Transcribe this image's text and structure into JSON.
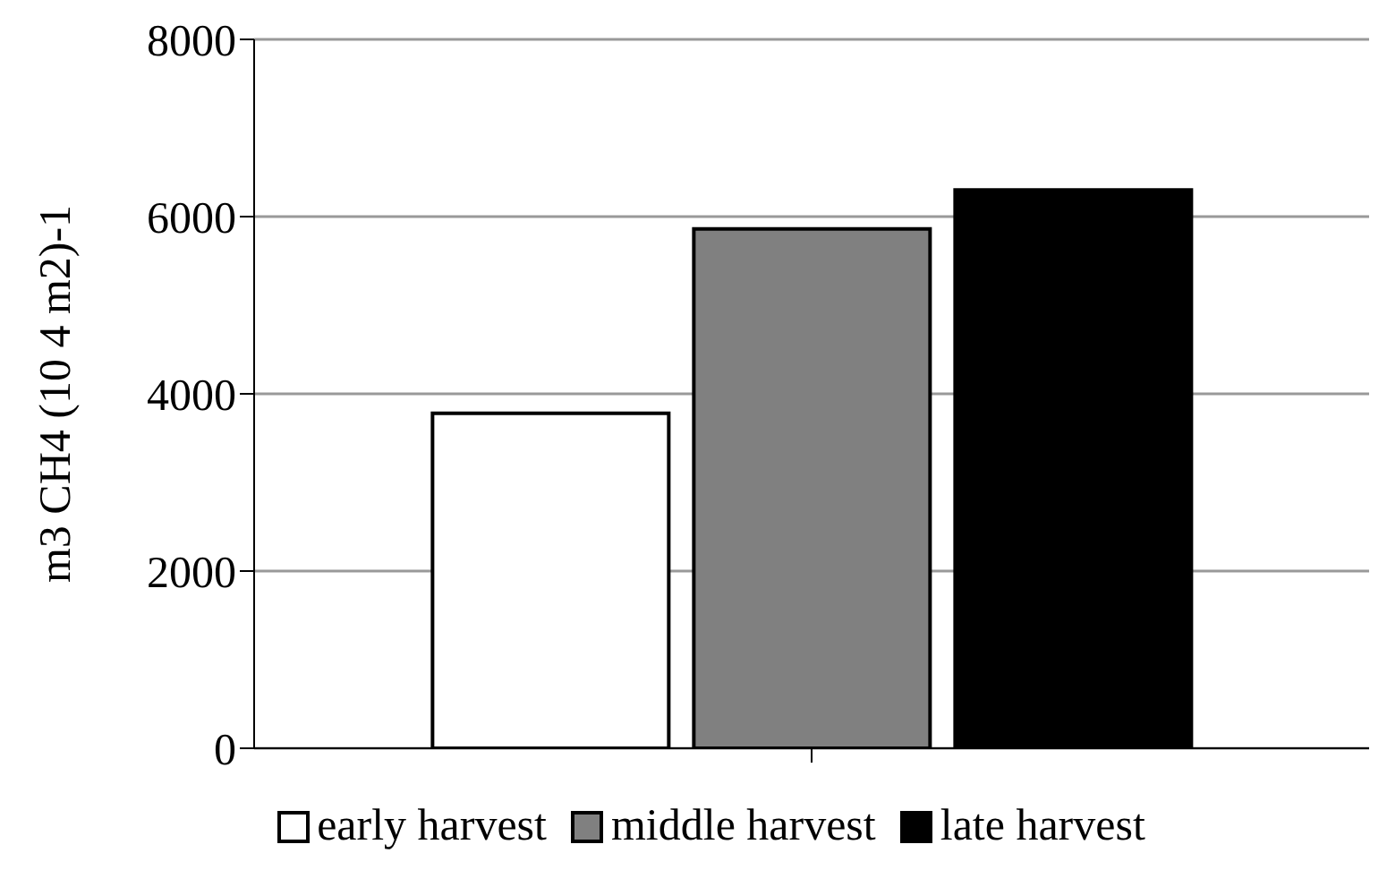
{
  "chart_data": {
    "type": "bar",
    "ylabel": "m3 CH4 (10 4 m2)-1",
    "categories": [
      null
    ],
    "series": [
      {
        "name": "early harvest",
        "color": "#ffffff",
        "values": [
          3780
        ]
      },
      {
        "name": "middle harvest",
        "color": "#808080",
        "values": [
          5860
        ]
      },
      {
        "name": "late harvest",
        "color": "#000000",
        "values": [
          6300
        ]
      }
    ],
    "ylim": [
      0,
      8000
    ],
    "yticks": [
      0,
      2000,
      4000,
      6000,
      8000
    ],
    "grid": "y",
    "legend": "bottom"
  }
}
